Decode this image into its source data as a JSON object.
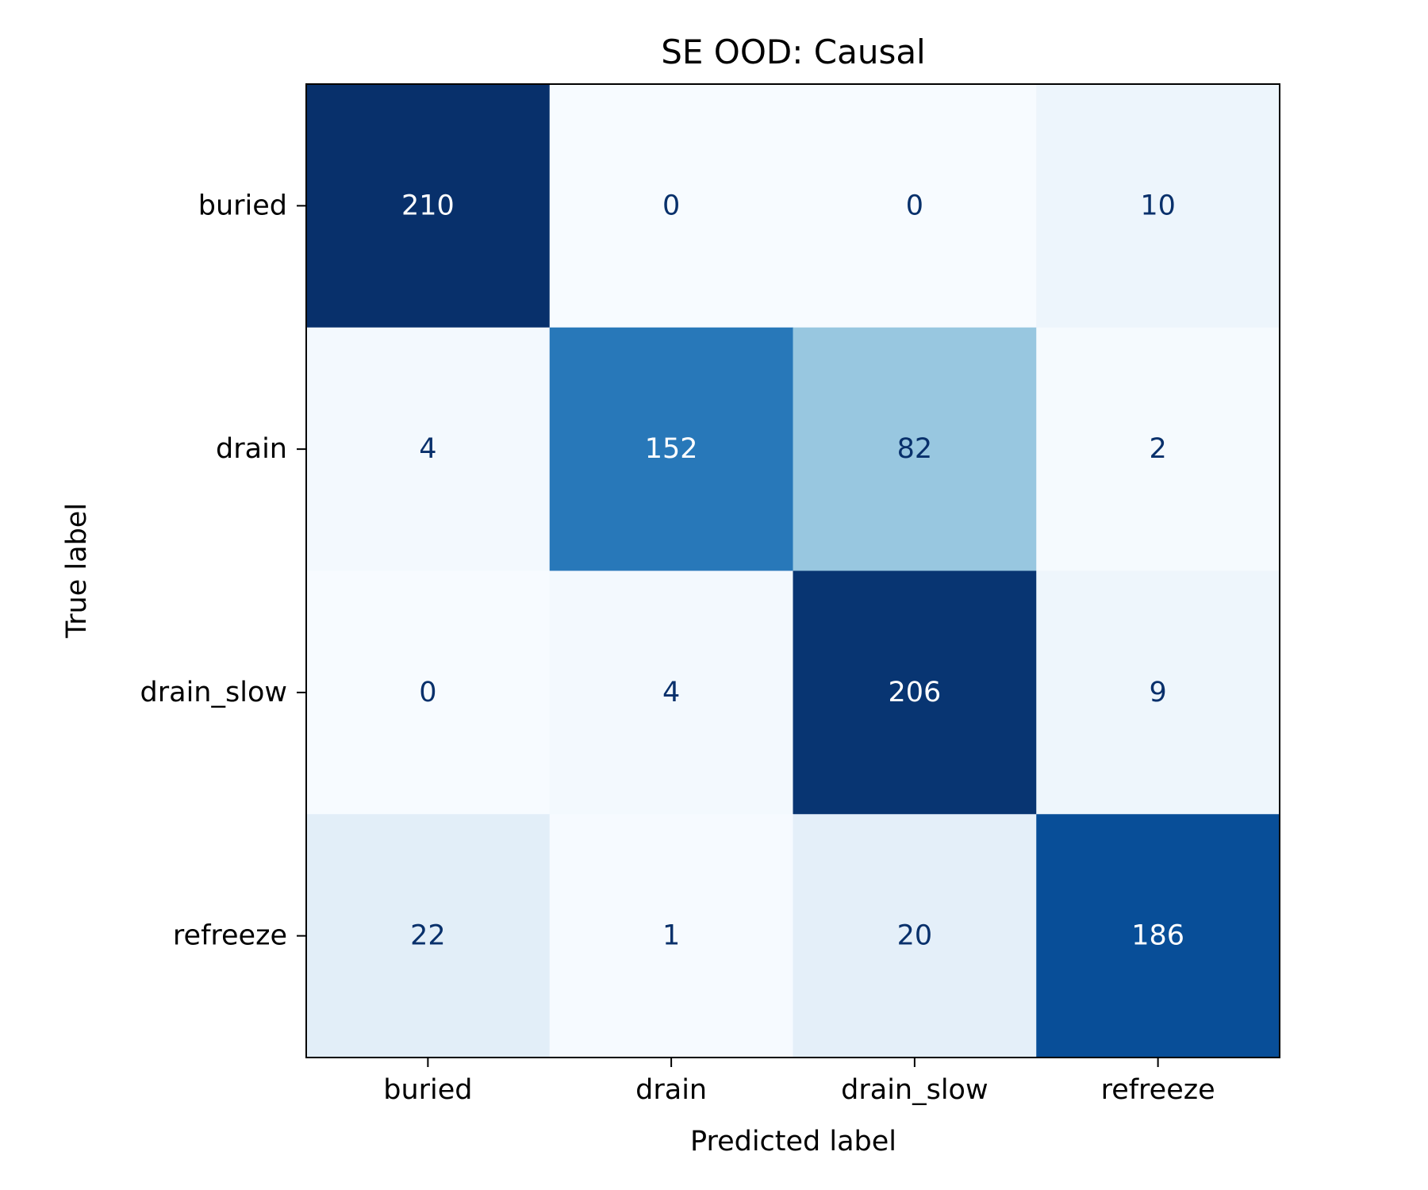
{
  "chart_data": {
    "type": "heatmap",
    "title": "SE OOD: Causal",
    "xlabel": "Predicted label",
    "ylabel": "True label",
    "x_categories": [
      "buried",
      "drain",
      "drain_slow",
      "refreeze"
    ],
    "y_categories": [
      "buried",
      "drain",
      "drain_slow",
      "refreeze"
    ],
    "values": [
      [
        210,
        0,
        0,
        10
      ],
      [
        4,
        152,
        82,
        2
      ],
      [
        0,
        4,
        206,
        9
      ],
      [
        22,
        1,
        20,
        186
      ]
    ],
    "colormap": "Blues",
    "value_range": [
      0,
      210
    ],
    "grid": false,
    "colors": {
      "text_dark": "#08306b",
      "text_light": "#ffffff"
    }
  }
}
